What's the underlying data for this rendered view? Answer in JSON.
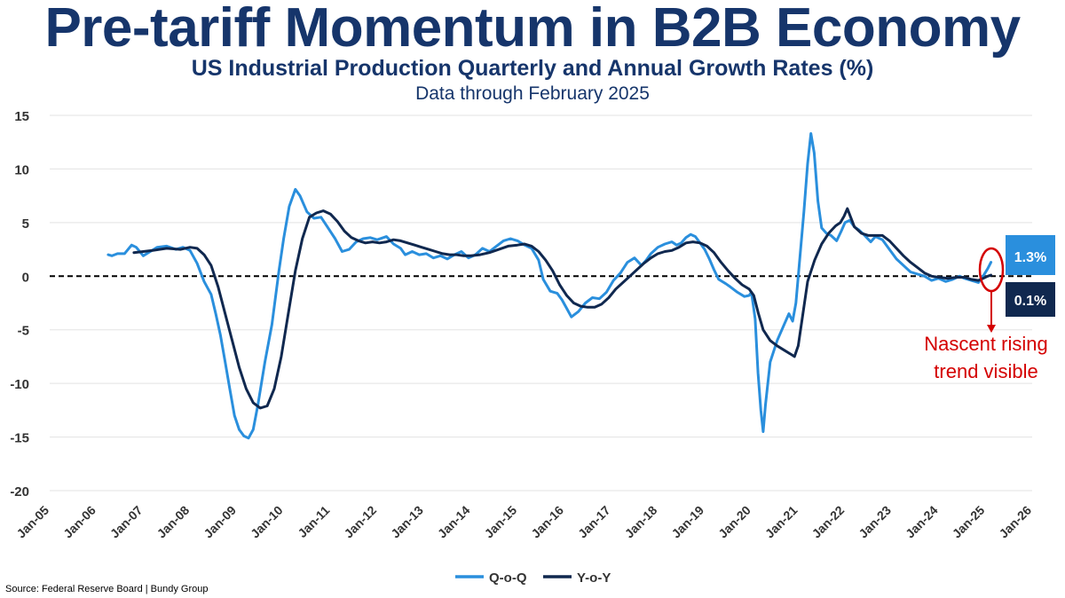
{
  "header": {
    "title": "Pre-tariff Momentum in B2B Economy",
    "subtitle": "US Industrial Production Quarterly and Annual Growth Rates (%)",
    "note": "Data through February 2025"
  },
  "source": "Source: Federal Reserve Board | Bundy Group",
  "colors": {
    "qoq": "#2a8fdd",
    "yoy": "#10284f",
    "annotation": "#d40000",
    "title": "#16356b"
  },
  "chart_data": {
    "type": "line",
    "title": "Pre-tariff Momentum in B2B Economy",
    "subtitle": "US Industrial Production Quarterly and Annual Growth Rates (%)",
    "xlabel": "",
    "ylabel": "",
    "ylim": [
      -20,
      15
    ],
    "xlim": [
      2005.0,
      2026.0
    ],
    "yticks": [
      15,
      10,
      5,
      0,
      -5,
      -10,
      -15,
      -20
    ],
    "xticks": [
      {
        "t": 2005,
        "label": "Jan-05"
      },
      {
        "t": 2006,
        "label": "Jan-06"
      },
      {
        "t": 2007,
        "label": "Jan-07"
      },
      {
        "t": 2008,
        "label": "Jan-08"
      },
      {
        "t": 2009,
        "label": "Jan-09"
      },
      {
        "t": 2010,
        "label": "Jan-10"
      },
      {
        "t": 2011,
        "label": "Jan-11"
      },
      {
        "t": 2012,
        "label": "Jan-12"
      },
      {
        "t": 2013,
        "label": "Jan-13"
      },
      {
        "t": 2014,
        "label": "Jan-14"
      },
      {
        "t": 2015,
        "label": "Jan-15"
      },
      {
        "t": 2016,
        "label": "Jan-16"
      },
      {
        "t": 2017,
        "label": "Jan-17"
      },
      {
        "t": 2018,
        "label": "Jan-18"
      },
      {
        "t": 2019,
        "label": "Jan-19"
      },
      {
        "t": 2020,
        "label": "Jan-20"
      },
      {
        "t": 2021,
        "label": "Jan-21"
      },
      {
        "t": 2022,
        "label": "Jan-22"
      },
      {
        "t": 2023,
        "label": "Jan-23"
      },
      {
        "t": 2024,
        "label": "Jan-24"
      },
      {
        "t": 2025,
        "label": "Jan-25"
      },
      {
        "t": 2026,
        "label": "Jan-26"
      }
    ],
    "grid": true,
    "reference_line": {
      "y": 0,
      "style": "dashed"
    },
    "legend": {
      "position": "bottom-center"
    },
    "series": [
      {
        "name": "Q-o-Q",
        "points": [
          [
            2006.25,
            2.0
          ],
          [
            2006.33,
            1.9
          ],
          [
            2006.45,
            2.1
          ],
          [
            2006.6,
            2.1
          ],
          [
            2006.75,
            2.9
          ],
          [
            2006.85,
            2.7
          ],
          [
            2007.0,
            1.9
          ],
          [
            2007.15,
            2.3
          ],
          [
            2007.3,
            2.7
          ],
          [
            2007.5,
            2.8
          ],
          [
            2007.7,
            2.5
          ],
          [
            2007.85,
            2.7
          ],
          [
            2008.0,
            2.4
          ],
          [
            2008.15,
            1.2
          ],
          [
            2008.3,
            -0.5
          ],
          [
            2008.45,
            -1.7
          ],
          [
            2008.55,
            -3.5
          ],
          [
            2008.65,
            -5.5
          ],
          [
            2008.75,
            -8.0
          ],
          [
            2008.85,
            -10.5
          ],
          [
            2008.95,
            -13.0
          ],
          [
            2009.05,
            -14.3
          ],
          [
            2009.15,
            -14.9
          ],
          [
            2009.25,
            -15.1
          ],
          [
            2009.35,
            -14.3
          ],
          [
            2009.45,
            -12.0
          ],
          [
            2009.6,
            -8.0
          ],
          [
            2009.75,
            -4.5
          ],
          [
            2009.9,
            0.5
          ],
          [
            2010.0,
            3.5
          ],
          [
            2010.12,
            6.5
          ],
          [
            2010.25,
            8.1
          ],
          [
            2010.35,
            7.5
          ],
          [
            2010.5,
            6.0
          ],
          [
            2010.65,
            5.4
          ],
          [
            2010.8,
            5.5
          ],
          [
            2010.95,
            4.5
          ],
          [
            2011.1,
            3.5
          ],
          [
            2011.25,
            2.3
          ],
          [
            2011.4,
            2.5
          ],
          [
            2011.55,
            3.2
          ],
          [
            2011.7,
            3.5
          ],
          [
            2011.85,
            3.6
          ],
          [
            2012.0,
            3.4
          ],
          [
            2012.2,
            3.7
          ],
          [
            2012.35,
            3.0
          ],
          [
            2012.5,
            2.6
          ],
          [
            2012.6,
            2.0
          ],
          [
            2012.75,
            2.3
          ],
          [
            2012.9,
            2.0
          ],
          [
            2013.05,
            2.1
          ],
          [
            2013.2,
            1.7
          ],
          [
            2013.35,
            1.9
          ],
          [
            2013.5,
            1.6
          ],
          [
            2013.65,
            2.0
          ],
          [
            2013.8,
            2.3
          ],
          [
            2013.95,
            1.7
          ],
          [
            2014.1,
            2.0
          ],
          [
            2014.25,
            2.6
          ],
          [
            2014.4,
            2.3
          ],
          [
            2014.55,
            2.8
          ],
          [
            2014.7,
            3.3
          ],
          [
            2014.85,
            3.5
          ],
          [
            2015.0,
            3.3
          ],
          [
            2015.15,
            2.9
          ],
          [
            2015.3,
            2.6
          ],
          [
            2015.45,
            1.5
          ],
          [
            2015.55,
            -0.3
          ],
          [
            2015.7,
            -1.4
          ],
          [
            2015.85,
            -1.6
          ],
          [
            2015.95,
            -2.2
          ],
          [
            2016.05,
            -3.0
          ],
          [
            2016.15,
            -3.8
          ],
          [
            2016.3,
            -3.3
          ],
          [
            2016.45,
            -2.5
          ],
          [
            2016.6,
            -2.0
          ],
          [
            2016.75,
            -2.1
          ],
          [
            2016.9,
            -1.5
          ],
          [
            2017.05,
            -0.4
          ],
          [
            2017.2,
            0.3
          ],
          [
            2017.35,
            1.3
          ],
          [
            2017.5,
            1.7
          ],
          [
            2017.65,
            1.0
          ],
          [
            2017.75,
            1.5
          ],
          [
            2017.85,
            2.1
          ],
          [
            2018.0,
            2.7
          ],
          [
            2018.15,
            3.0
          ],
          [
            2018.3,
            3.2
          ],
          [
            2018.4,
            2.9
          ],
          [
            2018.5,
            3.1
          ],
          [
            2018.6,
            3.6
          ],
          [
            2018.7,
            3.9
          ],
          [
            2018.8,
            3.7
          ],
          [
            2018.9,
            3.1
          ],
          [
            2019.0,
            2.5
          ],
          [
            2019.1,
            1.6
          ],
          [
            2019.2,
            0.6
          ],
          [
            2019.3,
            -0.3
          ],
          [
            2019.45,
            -0.7
          ],
          [
            2019.55,
            -1.0
          ],
          [
            2019.7,
            -1.5
          ],
          [
            2019.85,
            -1.9
          ],
          [
            2019.95,
            -1.8
          ],
          [
            2020.0,
            -1.5
          ],
          [
            2020.08,
            -4.0
          ],
          [
            2020.14,
            -9.0
          ],
          [
            2020.2,
            -12.5
          ],
          [
            2020.25,
            -14.5
          ],
          [
            2020.3,
            -12.0
          ],
          [
            2020.4,
            -8.0
          ],
          [
            2020.55,
            -6.0
          ],
          [
            2020.7,
            -4.5
          ],
          [
            2020.8,
            -3.5
          ],
          [
            2020.88,
            -4.2
          ],
          [
            2020.95,
            -2.5
          ],
          [
            2021.02,
            1.0
          ],
          [
            2021.12,
            6.0
          ],
          [
            2021.2,
            10.5
          ],
          [
            2021.27,
            13.3
          ],
          [
            2021.34,
            11.5
          ],
          [
            2021.42,
            7.0
          ],
          [
            2021.5,
            4.5
          ],
          [
            2021.6,
            4.0
          ],
          [
            2021.7,
            3.8
          ],
          [
            2021.82,
            3.3
          ],
          [
            2021.92,
            4.2
          ],
          [
            2022.0,
            5.0
          ],
          [
            2022.1,
            5.2
          ],
          [
            2022.2,
            4.6
          ],
          [
            2022.3,
            4.3
          ],
          [
            2022.4,
            3.9
          ],
          [
            2022.55,
            3.2
          ],
          [
            2022.65,
            3.7
          ],
          [
            2022.8,
            3.4
          ],
          [
            2022.95,
            2.5
          ],
          [
            2023.1,
            1.6
          ],
          [
            2023.25,
            1.0
          ],
          [
            2023.4,
            0.4
          ],
          [
            2023.55,
            0.2
          ],
          [
            2023.7,
            0.0
          ],
          [
            2023.85,
            -0.4
          ],
          [
            2024.0,
            -0.2
          ],
          [
            2024.15,
            -0.5
          ],
          [
            2024.3,
            -0.3
          ],
          [
            2024.45,
            0.0
          ],
          [
            2024.55,
            -0.2
          ],
          [
            2024.7,
            -0.4
          ],
          [
            2024.85,
            -0.6
          ],
          [
            2024.95,
            0.0
          ],
          [
            2025.05,
            0.7
          ],
          [
            2025.12,
            1.3
          ]
        ]
      },
      {
        "name": "Y-o-Y",
        "points": [
          [
            2006.8,
            2.2
          ],
          [
            2007.0,
            2.3
          ],
          [
            2007.2,
            2.4
          ],
          [
            2007.5,
            2.6
          ],
          [
            2007.8,
            2.5
          ],
          [
            2008.0,
            2.7
          ],
          [
            2008.15,
            2.6
          ],
          [
            2008.3,
            2.0
          ],
          [
            2008.45,
            1.0
          ],
          [
            2008.6,
            -1.0
          ],
          [
            2008.75,
            -3.5
          ],
          [
            2008.9,
            -6.0
          ],
          [
            2009.05,
            -8.5
          ],
          [
            2009.2,
            -10.5
          ],
          [
            2009.35,
            -11.8
          ],
          [
            2009.5,
            -12.3
          ],
          [
            2009.65,
            -12.1
          ],
          [
            2009.8,
            -10.5
          ],
          [
            2009.95,
            -7.5
          ],
          [
            2010.1,
            -3.5
          ],
          [
            2010.25,
            0.5
          ],
          [
            2010.4,
            3.5
          ],
          [
            2010.55,
            5.5
          ],
          [
            2010.7,
            5.9
          ],
          [
            2010.85,
            6.1
          ],
          [
            2011.0,
            5.8
          ],
          [
            2011.15,
            5.1
          ],
          [
            2011.3,
            4.2
          ],
          [
            2011.45,
            3.6
          ],
          [
            2011.6,
            3.3
          ],
          [
            2011.75,
            3.1
          ],
          [
            2011.9,
            3.2
          ],
          [
            2012.05,
            3.1
          ],
          [
            2012.2,
            3.2
          ],
          [
            2012.35,
            3.4
          ],
          [
            2012.5,
            3.3
          ],
          [
            2012.65,
            3.1
          ],
          [
            2012.8,
            2.9
          ],
          [
            2012.95,
            2.7
          ],
          [
            2013.1,
            2.5
          ],
          [
            2013.25,
            2.3
          ],
          [
            2013.4,
            2.1
          ],
          [
            2013.55,
            2.0
          ],
          [
            2013.7,
            2.0
          ],
          [
            2013.85,
            1.9
          ],
          [
            2014.0,
            1.9
          ],
          [
            2014.2,
            2.0
          ],
          [
            2014.4,
            2.2
          ],
          [
            2014.6,
            2.5
          ],
          [
            2014.8,
            2.8
          ],
          [
            2015.0,
            2.9
          ],
          [
            2015.15,
            3.0
          ],
          [
            2015.3,
            2.8
          ],
          [
            2015.45,
            2.3
          ],
          [
            2015.6,
            1.5
          ],
          [
            2015.75,
            0.5
          ],
          [
            2015.9,
            -0.8
          ],
          [
            2016.05,
            -1.8
          ],
          [
            2016.2,
            -2.5
          ],
          [
            2016.35,
            -2.8
          ],
          [
            2016.5,
            -2.9
          ],
          [
            2016.65,
            -2.9
          ],
          [
            2016.8,
            -2.6
          ],
          [
            2016.95,
            -2.0
          ],
          [
            2017.1,
            -1.2
          ],
          [
            2017.25,
            -0.6
          ],
          [
            2017.4,
            0.0
          ],
          [
            2017.55,
            0.6
          ],
          [
            2017.7,
            1.2
          ],
          [
            2017.85,
            1.7
          ],
          [
            2018.0,
            2.1
          ],
          [
            2018.15,
            2.3
          ],
          [
            2018.3,
            2.4
          ],
          [
            2018.45,
            2.7
          ],
          [
            2018.6,
            3.1
          ],
          [
            2018.75,
            3.2
          ],
          [
            2018.9,
            3.1
          ],
          [
            2019.05,
            2.8
          ],
          [
            2019.2,
            2.2
          ],
          [
            2019.35,
            1.3
          ],
          [
            2019.5,
            0.5
          ],
          [
            2019.65,
            -0.2
          ],
          [
            2019.8,
            -0.8
          ],
          [
            2019.95,
            -1.2
          ],
          [
            2020.05,
            -1.8
          ],
          [
            2020.15,
            -3.5
          ],
          [
            2020.25,
            -5.0
          ],
          [
            2020.4,
            -6.0
          ],
          [
            2020.55,
            -6.5
          ],
          [
            2020.7,
            -6.9
          ],
          [
            2020.85,
            -7.3
          ],
          [
            2020.92,
            -7.5
          ],
          [
            2021.0,
            -6.5
          ],
          [
            2021.1,
            -3.5
          ],
          [
            2021.2,
            -0.5
          ],
          [
            2021.35,
            1.5
          ],
          [
            2021.5,
            3.0
          ],
          [
            2021.65,
            4.0
          ],
          [
            2021.8,
            4.7
          ],
          [
            2021.9,
            5.0
          ],
          [
            2021.98,
            5.6
          ],
          [
            2022.05,
            6.3
          ],
          [
            2022.12,
            5.5
          ],
          [
            2022.2,
            4.6
          ],
          [
            2022.35,
            4.0
          ],
          [
            2022.5,
            3.8
          ],
          [
            2022.65,
            3.8
          ],
          [
            2022.8,
            3.8
          ],
          [
            2022.95,
            3.3
          ],
          [
            2023.1,
            2.6
          ],
          [
            2023.25,
            1.9
          ],
          [
            2023.4,
            1.3
          ],
          [
            2023.55,
            0.8
          ],
          [
            2023.7,
            0.3
          ],
          [
            2023.85,
            0.0
          ],
          [
            2024.0,
            -0.1
          ],
          [
            2024.2,
            -0.2
          ],
          [
            2024.4,
            -0.1
          ],
          [
            2024.55,
            -0.1
          ],
          [
            2024.7,
            -0.3
          ],
          [
            2024.85,
            -0.4
          ],
          [
            2024.95,
            -0.2
          ],
          [
            2025.05,
            0.0
          ],
          [
            2025.12,
            0.1
          ]
        ]
      }
    ],
    "end_labels": [
      {
        "series": "Q-o-Q",
        "value": 1.3,
        "text": "1.3%"
      },
      {
        "series": "Y-o-Y",
        "value": 0.1,
        "text": "0.1%"
      }
    ],
    "annotation": {
      "line1": "Nascent rising",
      "line2": "trend visible"
    }
  }
}
